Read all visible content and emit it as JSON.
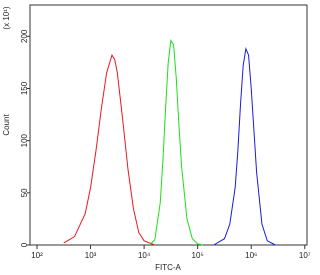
{
  "chart_data": {
    "type": "line",
    "y_multiplier_label": "(x 10¹)",
    "xlabel": "FITC-A",
    "ylabel": "Count",
    "xscale": "log",
    "xlim": [
      74,
      11000000
    ],
    "ylim": [
      0,
      230
    ],
    "xticks": [
      {
        "value": 100,
        "label": "10²"
      },
      {
        "value": 1000,
        "label": "10³"
      },
      {
        "value": 10000,
        "label": "10⁴"
      },
      {
        "value": 100000,
        "label": "10⁵"
      },
      {
        "value": 1000000,
        "label": "10⁶"
      },
      {
        "value": 10000000,
        "label": "10⁷"
      }
    ],
    "yticks": [
      0,
      50,
      100,
      150,
      200
    ],
    "series": [
      {
        "color": "#e8191d",
        "x": [
          316,
          501,
          794,
          1000,
          1259,
          1585,
          1995,
          2512,
          2818,
          3162,
          3981,
          5012,
          6310,
          7943,
          10000,
          15849
        ],
        "values": [
          2,
          8,
          30,
          55,
          90,
          130,
          165,
          182,
          178,
          165,
          120,
          72,
          35,
          12,
          4,
          0
        ]
      },
      {
        "color": "#19e019",
        "x": [
          12589,
          15849,
          19953,
          22387,
          25119,
          28184,
          31623,
          35481,
          39811,
          44668,
          50119,
          63096,
          79433,
          100000,
          125893
        ],
        "values": [
          0,
          5,
          40,
          80,
          130,
          175,
          196,
          192,
          160,
          115,
          75,
          25,
          6,
          1,
          0
        ]
      },
      {
        "color": "#1a1adc",
        "x": [
          199526,
          316228,
          398107,
          501187,
          562341,
          630957,
          707946,
          794328,
          891251,
          1000000,
          1122018,
          1258925,
          1584893,
          1995262,
          2818383
        ],
        "values": [
          0,
          6,
          20,
          55,
          90,
          135,
          172,
          188,
          182,
          150,
          110,
          70,
          20,
          4,
          0
        ]
      }
    ]
  }
}
